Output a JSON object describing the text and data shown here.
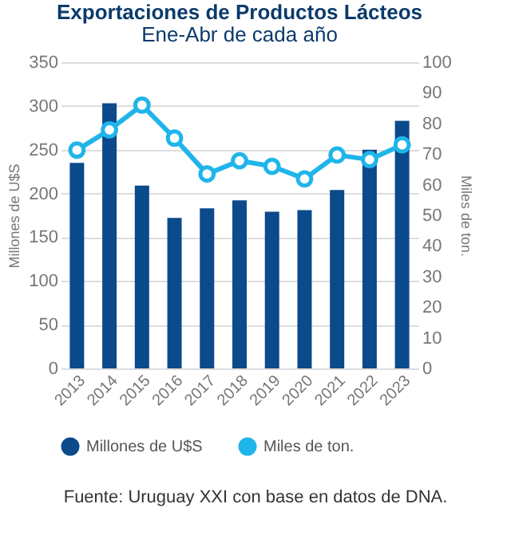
{
  "chart_data": {
    "type": "bar",
    "title": "Exportaciones de Productos Lácteos",
    "subtitle": "Ene-Abr de cada año",
    "ylabel": "Millones de U$S",
    "y2label": "Miles de ton.",
    "categories": [
      "2013",
      "2014",
      "2015",
      "2016",
      "2017",
      "2018",
      "2019",
      "2020",
      "2021",
      "2022",
      "2023"
    ],
    "series": [
      {
        "name": "Millones de U$S",
        "color": "#0b4a8b",
        "values": [
          235,
          303,
          209,
          172,
          183,
          192,
          179,
          181,
          204,
          250,
          283
        ]
      },
      {
        "name": "Miles de ton.",
        "type": "line",
        "axis": "y2",
        "color": "#1fb5ea",
        "marker": "circle",
        "values": [
          71.3,
          77.9,
          86,
          75.2,
          63.5,
          67.8,
          66,
          61.9,
          69.7,
          68.2,
          73
        ]
      }
    ],
    "ylim": [
      0,
      350
    ],
    "yticks": [
      0,
      50,
      100,
      150,
      200,
      250,
      300,
      350
    ],
    "y2lim": [
      0,
      100
    ],
    "y2ticks": [
      0,
      10,
      20,
      30,
      40,
      50,
      60,
      70,
      80,
      90,
      100
    ],
    "grid": "y",
    "legend": "bottom",
    "annotations": [
      "Fuente: Uruguay XXI con base en datos de DNA."
    ]
  }
}
